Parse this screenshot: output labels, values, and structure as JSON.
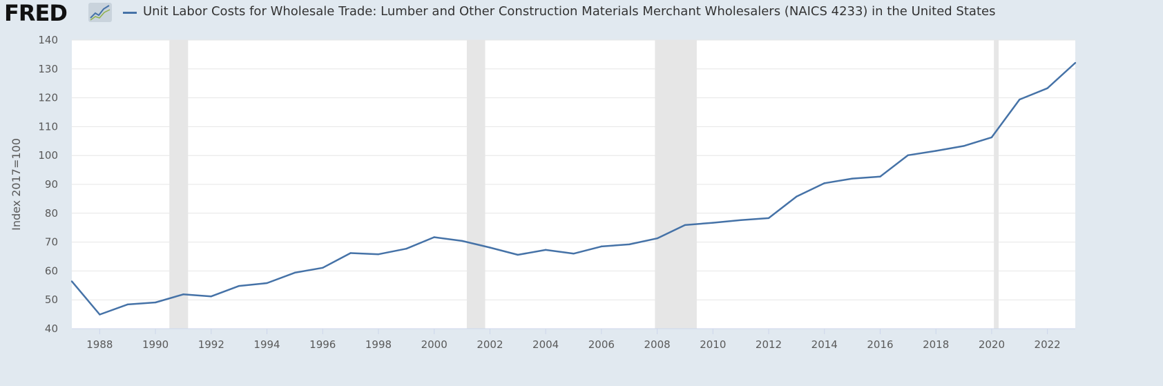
{
  "header": {
    "logo_text": "FRED",
    "logo_icon": "trend-line-icon",
    "title": "Unit Labor Costs for Wholesale Trade: Lumber and Other Construction Materials Merchant Wholesalers (NAICS 4233) in the United States"
  },
  "colors": {
    "series": "#4572a7",
    "background": "#e1e9f0",
    "plot_bg": "#ffffff",
    "recession": "#e6e6e6",
    "grid": "#e6e6e6"
  },
  "chart_data": {
    "type": "line",
    "title": "Unit Labor Costs for Wholesale Trade: Lumber and Other Construction Materials Merchant Wholesalers (NAICS 4233) in the United States",
    "xlabel": "",
    "ylabel": "Index 2017=100",
    "xlim": [
      1987,
      2023
    ],
    "ylim": [
      40,
      140
    ],
    "grid": true,
    "x_ticks": [
      1988,
      1990,
      1992,
      1994,
      1996,
      1998,
      2000,
      2002,
      2004,
      2006,
      2008,
      2010,
      2012,
      2014,
      2016,
      2018,
      2020,
      2022
    ],
    "y_ticks": [
      40,
      50,
      60,
      70,
      80,
      90,
      100,
      110,
      120,
      130,
      140
    ],
    "recessions": [
      [
        1990.5,
        1991.17
      ],
      [
        2001.17,
        2001.83
      ],
      [
        2007.92,
        2009.42
      ],
      [
        2020.08,
        2020.25
      ]
    ],
    "series": [
      {
        "name": "Unit Labor Costs for Wholesale Trade: Lumber and Other Construction Materials Merchant Wholesalers (NAICS 4233) in the United States",
        "x": [
          1987,
          1988,
          1989,
          1990,
          1991,
          1992,
          1993,
          1994,
          1995,
          1996,
          1997,
          1998,
          1999,
          2000,
          2001,
          2002,
          2003,
          2004,
          2005,
          2006,
          2007,
          2008,
          2009,
          2010,
          2011,
          2012,
          2013,
          2014,
          2015,
          2016,
          2017,
          2018,
          2019,
          2020,
          2021,
          2022,
          2023
        ],
        "values": [
          56.4,
          44.9,
          48.4,
          49.1,
          51.9,
          51.2,
          54.8,
          55.8,
          59.4,
          61.1,
          66.2,
          65.8,
          67.7,
          71.7,
          70.4,
          68.1,
          65.6,
          67.3,
          66.0,
          68.5,
          69.2,
          71.3,
          75.9,
          76.7,
          77.6,
          78.3,
          85.8,
          90.4,
          92.0,
          92.7,
          100.1,
          101.6,
          103.3,
          106.3,
          119.4,
          123.3,
          132.1
        ]
      }
    ]
  }
}
